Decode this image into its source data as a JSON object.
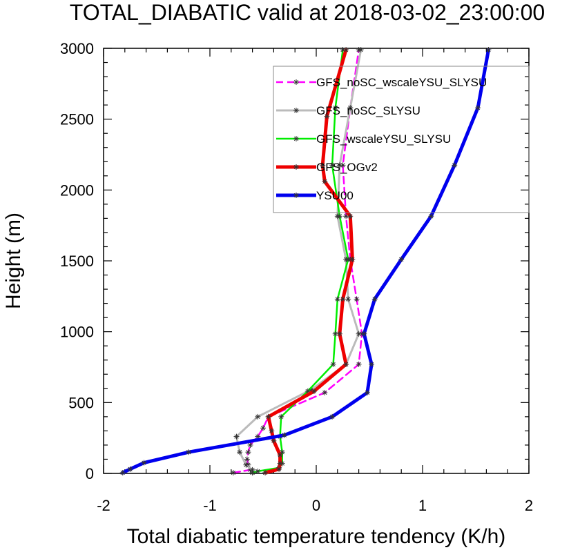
{
  "chart_data": {
    "type": "line",
    "title": "TOTAL_DIABATIC valid at 2018-03-02_23:00:00",
    "xlabel": "Total diabatic temperature tendency (K/h)",
    "ylabel": "Height (m)",
    "xlim": [
      -2,
      2
    ],
    "ylim": [
      0,
      3000
    ],
    "xticks": [
      "-2",
      "-1",
      "0",
      "1",
      "2"
    ],
    "yticks": [
      "0",
      "500",
      "1000",
      "1500",
      "2000",
      "2500",
      "3000"
    ],
    "grid": false,
    "legend_position": "top-right",
    "series": [
      {
        "name": "GFS_noSC_wscaleYSU_SLYSU",
        "color": "#ff00ff",
        "dash": "dashed",
        "points": [
          [
            -0.78,
            5
          ],
          [
            -0.62,
            25
          ],
          [
            -0.64,
            60
          ],
          [
            -0.65,
            100
          ],
          [
            -0.64,
            150
          ],
          [
            -0.62,
            200
          ],
          [
            -0.55,
            260
          ],
          [
            -0.5,
            320
          ],
          [
            -0.45,
            400
          ],
          [
            0.08,
            570
          ],
          [
            0.4,
            770
          ],
          [
            0.43,
            985
          ],
          [
            0.38,
            1230
          ],
          [
            0.32,
            1510
          ],
          [
            0.28,
            1815
          ],
          [
            0.25,
            2175
          ],
          [
            0.32,
            2580
          ],
          [
            0.4,
            2990
          ]
        ]
      },
      {
        "name": "GFS_noSC_SLYSU",
        "color": "#bbbbbb",
        "dash": "solid",
        "points": [
          [
            -0.6,
            5
          ],
          [
            -0.6,
            25
          ],
          [
            -0.66,
            60
          ],
          [
            -0.72,
            150
          ],
          [
            -0.75,
            260
          ],
          [
            -0.55,
            400
          ],
          [
            -0.05,
            590
          ],
          [
            0.28,
            770
          ],
          [
            0.4,
            985
          ],
          [
            0.3,
            1230
          ],
          [
            0.28,
            1510
          ],
          [
            0.2,
            1815
          ],
          [
            0.22,
            2175
          ],
          [
            0.32,
            2580
          ],
          [
            0.42,
            2990
          ]
        ]
      },
      {
        "name": "GFS_wscaleYSU_SLYSU",
        "color": "#00ee00",
        "dash": "solid",
        "points": [
          [
            -0.6,
            5
          ],
          [
            -0.55,
            15
          ],
          [
            -0.35,
            40
          ],
          [
            -0.32,
            70
          ],
          [
            -0.32,
            150
          ],
          [
            -0.34,
            260
          ],
          [
            -0.33,
            400
          ],
          [
            -0.08,
            580
          ],
          [
            0.16,
            770
          ],
          [
            0.18,
            985
          ],
          [
            0.2,
            1230
          ],
          [
            0.3,
            1510
          ],
          [
            0.22,
            1815
          ],
          [
            0.15,
            2175
          ],
          [
            0.18,
            2580
          ],
          [
            0.25,
            2990
          ]
        ]
      },
      {
        "name": "GFS_OGv2",
        "color": "#ee0000",
        "dash": "solid",
        "points": [
          [
            -0.48,
            5
          ],
          [
            -0.35,
            30
          ],
          [
            -0.34,
            70
          ],
          [
            -0.34,
            130
          ],
          [
            -0.4,
            230
          ],
          [
            -0.42,
            300
          ],
          [
            -0.45,
            400
          ],
          [
            -0.02,
            580
          ],
          [
            0.28,
            770
          ],
          [
            0.22,
            985
          ],
          [
            0.25,
            1230
          ],
          [
            0.34,
            1510
          ],
          [
            0.32,
            1815
          ],
          [
            0.08,
            2060
          ],
          [
            0.06,
            2175
          ],
          [
            0.1,
            2520
          ],
          [
            0.28,
            2990
          ]
        ]
      },
      {
        "name": "YSU00",
        "color": "#0000ee",
        "dash": "solid",
        "points": [
          [
            -1.82,
            5
          ],
          [
            -1.75,
            30
          ],
          [
            -1.62,
            75
          ],
          [
            -1.2,
            150
          ],
          [
            -0.3,
            270
          ],
          [
            0.15,
            400
          ],
          [
            0.48,
            570
          ],
          [
            0.52,
            770
          ],
          [
            0.45,
            985
          ],
          [
            0.55,
            1230
          ],
          [
            0.8,
            1510
          ],
          [
            1.08,
            1815
          ],
          [
            1.3,
            2175
          ],
          [
            1.52,
            2580
          ],
          [
            1.62,
            2990
          ]
        ]
      }
    ]
  }
}
